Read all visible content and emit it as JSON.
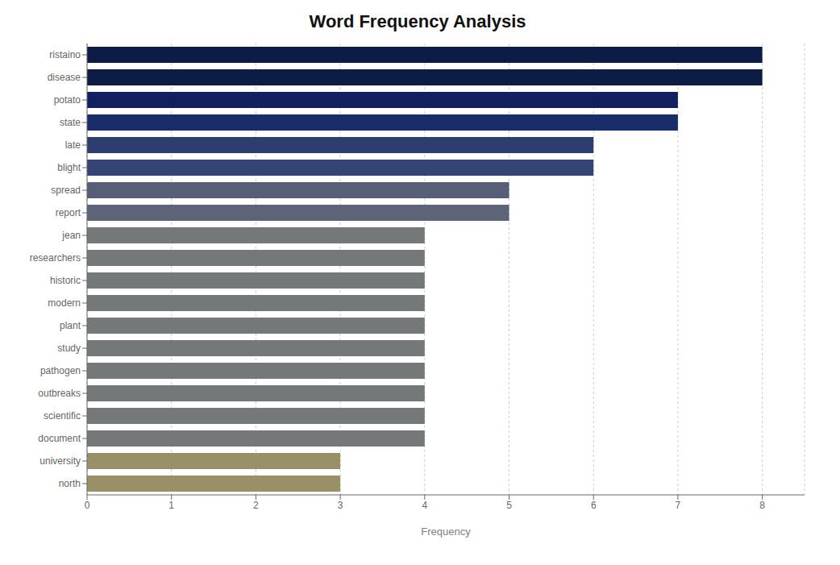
{
  "chart_data": {
    "type": "bar",
    "title": "Word Frequency Analysis",
    "orientation": "horizontal",
    "categories": [
      "ristaino",
      "disease",
      "potato",
      "state",
      "late",
      "blight",
      "spread",
      "report",
      "jean",
      "researchers",
      "historic",
      "modern",
      "plant",
      "study",
      "pathogen",
      "outbreaks",
      "scientific",
      "document",
      "university",
      "north"
    ],
    "values": [
      8,
      8,
      7,
      7,
      6,
      6,
      5,
      5,
      4,
      4,
      4,
      4,
      4,
      4,
      4,
      4,
      4,
      4,
      3,
      3
    ],
    "colors": [
      "#0c1c45",
      "#0c1c45",
      "#122060",
      "#192d6a",
      "#2d3e6e",
      "#344575",
      "#565e78",
      "#5d6478",
      "#757878",
      "#757878",
      "#757878",
      "#757878",
      "#757878",
      "#757878",
      "#757878",
      "#757878",
      "#757878",
      "#757878",
      "#9a9068",
      "#9a9068"
    ],
    "xlabel": "Frequency",
    "xlim": [
      0,
      8.5
    ],
    "xticks": [
      0,
      1,
      2,
      3,
      4,
      5,
      6,
      7,
      8
    ],
    "grid": true
  }
}
